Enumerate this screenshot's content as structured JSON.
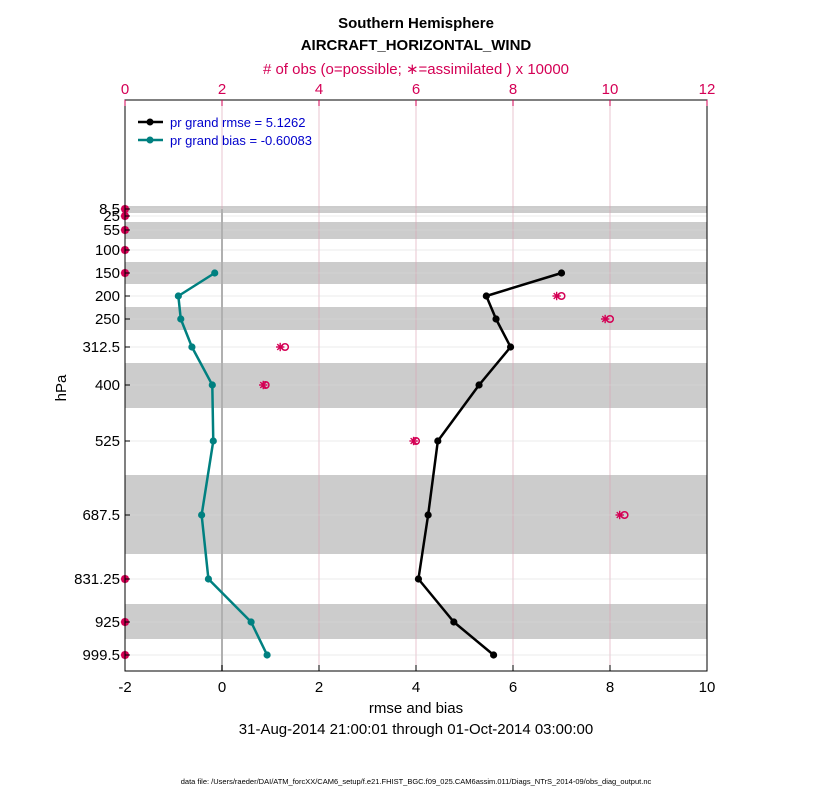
{
  "chart_data": {
    "type": "line",
    "title": "Southern Hemisphere",
    "subtitle": "AIRCRAFT_HORIZONTAL_WIND",
    "top_axis_label": "# of obs (o=possible; ∗=assimilated ) x 10000",
    "xlabel": "rmse and bias",
    "ylabel": "hPa",
    "time_range": "31-Aug-2014 21:00:01 through 01-Oct-2014 03:00:00",
    "footer": "data file: /Users/raeder/DAI/ATM_forcXX/CAM6_setup/f.e21.FHIST_BGC.f09_025.CAM6assim.011/Diags_NTrS_2014-09/obs_diag_output.nc",
    "xlim": [
      -2,
      10
    ],
    "xticks": [
      "-2",
      "0",
      "2",
      "4",
      "6",
      "8",
      "10"
    ],
    "top_xlim": [
      0,
      12
    ],
    "top_xticks": [
      "0",
      "2",
      "4",
      "6",
      "8",
      "10",
      "12"
    ],
    "levels": [
      "8.5",
      "25",
      "55",
      "100",
      "150",
      "200",
      "250",
      "312.5",
      "400",
      "525",
      "687.5",
      "831.25",
      "925",
      "999.5"
    ],
    "legend": [
      "pr grand rmse = 5.1262",
      "pr grand bias = -0.60083"
    ],
    "series": [
      {
        "name": "pr grand rmse",
        "color": "#000000",
        "levels": [
          "150",
          "200",
          "250",
          "312.5",
          "400",
          "525",
          "687.5",
          "831.25",
          "925",
          "999.5"
        ],
        "values": [
          7.0,
          5.45,
          5.65,
          5.95,
          5.3,
          4.45,
          4.25,
          4.05,
          4.78,
          5.6
        ]
      },
      {
        "name": "pr grand bias",
        "color": "#008080",
        "levels": [
          "150",
          "200",
          "250",
          "312.5",
          "400",
          "525",
          "687.5",
          "831.25",
          "925",
          "999.5"
        ],
        "values": [
          -0.15,
          -0.9,
          -0.85,
          -0.62,
          -0.2,
          -0.18,
          -0.42,
          -0.28,
          0.6,
          0.93
        ]
      }
    ],
    "obs_counts": {
      "color": "#d40055",
      "levels": [
        "8.5",
        "25",
        "55",
        "100",
        "150",
        "200",
        "250",
        "312.5",
        "400",
        "525",
        "687.5",
        "831.25",
        "925",
        "999.5"
      ],
      "possible": [
        0,
        0,
        0,
        0,
        0,
        9.0,
        10.0,
        3.3,
        2.9,
        6.0,
        10.3,
        0,
        0,
        0
      ],
      "assimilated": [
        0,
        0,
        0,
        0,
        0,
        8.9,
        9.9,
        3.2,
        2.85,
        5.95,
        10.2,
        0,
        0,
        0
      ]
    },
    "colors": {
      "axis_top": "#d40055",
      "legend_text": "#0000cc",
      "band": "#cccccc",
      "zero_line": "#b0b0b0"
    }
  }
}
